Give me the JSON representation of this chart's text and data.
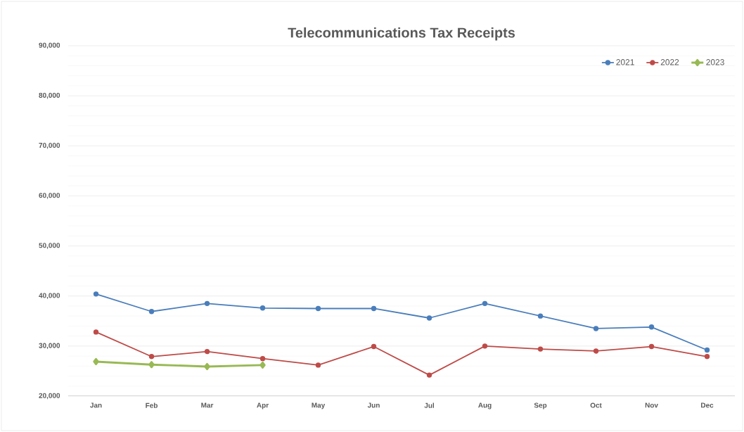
{
  "chart_data": {
    "type": "line",
    "title": "Telecommunications Tax Receipts",
    "categories": [
      "Jan",
      "Feb",
      "Mar",
      "Apr",
      "May",
      "Jun",
      "Jul",
      "Aug",
      "Sep",
      "Oct",
      "Nov",
      "Dec"
    ],
    "series": [
      {
        "name": "2021",
        "color": "#4a7ebb",
        "marker": "circle",
        "values": [
          40400,
          36900,
          38500,
          37600,
          37500,
          37500,
          35600,
          38500,
          36000,
          33500,
          33800,
          29200
        ]
      },
      {
        "name": "2022",
        "color": "#be4b48",
        "marker": "circle",
        "values": [
          32800,
          27900,
          28900,
          27500,
          26200,
          29900,
          24200,
          30000,
          29400,
          29000,
          29900,
          27900
        ]
      },
      {
        "name": "2023",
        "color": "#98b954",
        "marker": "diamond",
        "values": [
          26900,
          26300,
          25900,
          26200,
          null,
          null,
          null,
          null,
          null,
          null,
          null,
          null
        ]
      }
    ],
    "ylim": [
      20000,
      90000
    ],
    "yticks": [
      {
        "value": 20000,
        "label": "20,000"
      },
      {
        "value": 30000,
        "label": "30,000"
      },
      {
        "value": 40000,
        "label": "40,000"
      },
      {
        "value": 50000,
        "label": "50,000"
      },
      {
        "value": 60000,
        "label": "60,000"
      },
      {
        "value": 70000,
        "label": "70,000"
      },
      {
        "value": 80000,
        "label": "80,000"
      },
      {
        "value": 90000,
        "label": "90,000"
      }
    ],
    "grid": "y",
    "legend": "top right",
    "line_style": "solid"
  }
}
